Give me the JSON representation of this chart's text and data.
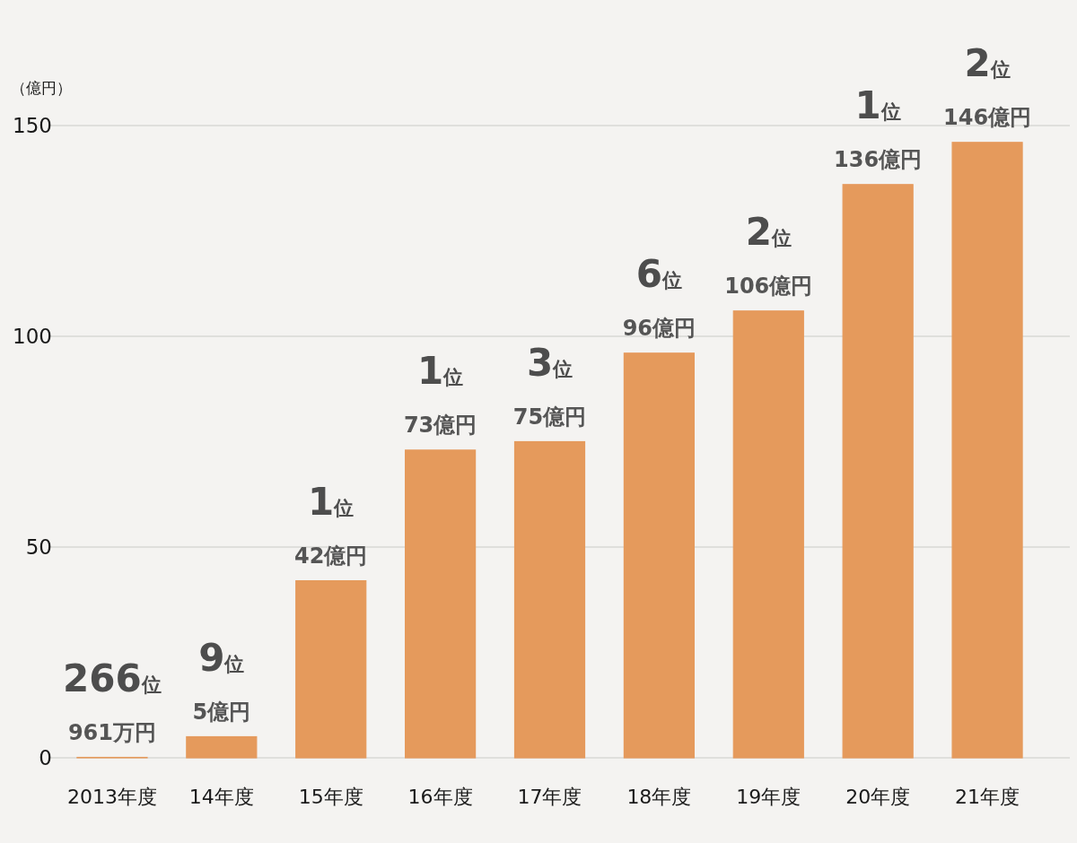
{
  "chart_data": {
    "type": "bar",
    "ylabel": "（億円）",
    "categories": [
      "2013年度",
      "14年度",
      "15年度",
      "16年度",
      "17年度",
      "18年度",
      "19年度",
      "20年度",
      "21年度"
    ],
    "values": [
      0.0961,
      5,
      42,
      73,
      75,
      96,
      106,
      136,
      146
    ],
    "value_labels": [
      null,
      "5億円",
      "42億円",
      "73億円",
      "75億円",
      "96億円",
      "106億円",
      "136億円",
      "146億円"
    ],
    "color": "#e59a5c",
    "ylim": [
      0,
      150
    ],
    "yticks": [
      0,
      50,
      100,
      150
    ],
    "grid": "y",
    "annotations": [
      {
        "text": "961万円",
        "x": "2013年度",
        "y": 0.0961
      },
      {
        "text": "266位",
        "x": "2013年度",
        "y": 0.0961
      },
      {
        "text": "9位",
        "x": "14年度",
        "y": 5
      },
      {
        "text": "1位",
        "x": "15年度",
        "y": 42
      },
      {
        "text": "1位",
        "x": "16年度",
        "y": 73
      },
      {
        "text": "3位",
        "x": "17年度",
        "y": 75
      },
      {
        "text": "6位",
        "x": "18年度",
        "y": 96
      },
      {
        "text": "2位",
        "x": "19年度",
        "y": 106
      },
      {
        "text": "1位",
        "x": "20年度",
        "y": 136
      },
      {
        "text": "2位",
        "x": "21年度",
        "y": 146
      }
    ]
  }
}
